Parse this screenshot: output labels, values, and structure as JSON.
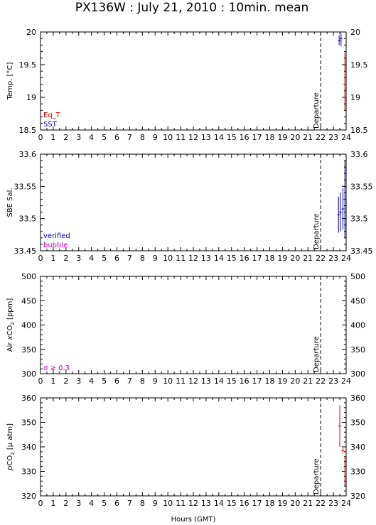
{
  "title": "PX136W : July 21, 2010 : 10min. mean",
  "xlabel": "Hours (GMT)",
  "departure_label": "Departure",
  "chart_data": [
    {
      "type": "scatter",
      "ylabel": "Temp. [°C]",
      "xlim": [
        0,
        24
      ],
      "ylim": [
        18.5,
        20
      ],
      "yticks": [
        18.5,
        19,
        19.5,
        20
      ],
      "ytick_labels": [
        "18.5",
        "19",
        "19.5",
        "20"
      ],
      "xticks": [
        0,
        1,
        2,
        3,
        4,
        5,
        6,
        7,
        8,
        9,
        10,
        11,
        12,
        13,
        14,
        15,
        16,
        17,
        18,
        19,
        20,
        21,
        22,
        23,
        24
      ],
      "departure_x": 22,
      "legend": [
        {
          "label": "Eq_T",
          "color": "#cc0000"
        },
        {
          "label": "SST",
          "color": "#0000aa"
        }
      ],
      "series": [
        {
          "name": "SST",
          "color": "#0000aa",
          "points": [
            {
              "x": 23.45,
              "y": 19.87,
              "lo": 19.8,
              "hi": 19.95
            },
            {
              "x": 23.6,
              "y": 19.9,
              "lo": 19.78,
              "hi": 19.98
            }
          ]
        },
        {
          "name": "Eq_T",
          "color": "#cc0000",
          "points": [
            {
              "x": 23.9,
              "y": 19.2,
              "lo": 18.8,
              "hi": 19.68
            }
          ]
        }
      ]
    },
    {
      "type": "scatter",
      "ylabel": "SBE Sal.",
      "xlim": [
        0,
        24
      ],
      "ylim": [
        33.45,
        33.6
      ],
      "yticks": [
        33.45,
        33.5,
        33.55,
        33.6
      ],
      "ytick_labels": [
        "33.45",
        "33.5",
        "33.55",
        "33.6"
      ],
      "xticks": [
        0,
        1,
        2,
        3,
        4,
        5,
        6,
        7,
        8,
        9,
        10,
        11,
        12,
        13,
        14,
        15,
        16,
        17,
        18,
        19,
        20,
        21,
        22,
        23,
        24
      ],
      "departure_x": 22,
      "legend": [
        {
          "label": "verified",
          "color": "#0000aa"
        },
        {
          "label": "bubble",
          "color": "#cc00cc"
        }
      ],
      "series": [
        {
          "name": "verified",
          "color": "#0000aa",
          "points": [
            {
              "x": 23.4,
              "y": 33.506,
              "lo": 33.478,
              "hi": 33.534
            },
            {
              "x": 23.55,
              "y": 33.51,
              "lo": 33.48,
              "hi": 33.54
            },
            {
              "x": 23.75,
              "y": 33.515,
              "lo": 33.483,
              "hi": 33.547
            },
            {
              "x": 23.9,
              "y": 33.53,
              "lo": 33.47,
              "hi": 33.59
            }
          ]
        }
      ]
    },
    {
      "type": "scatter",
      "ylabel": "Air xCO2 [ppm]",
      "xlim": [
        0,
        24
      ],
      "ylim": [
        300,
        500
      ],
      "yticks": [
        300,
        350,
        400,
        450,
        500
      ],
      "ytick_labels": [
        "300",
        "350",
        "400",
        "450",
        "500"
      ],
      "xticks": [
        0,
        1,
        2,
        3,
        4,
        5,
        6,
        7,
        8,
        9,
        10,
        11,
        12,
        13,
        14,
        15,
        16,
        17,
        18,
        19,
        20,
        21,
        22,
        23,
        24
      ],
      "departure_x": 22,
      "legend": [
        {
          "label": "σ ≥ 0.3",
          "color": "#cc00cc"
        }
      ],
      "series": []
    },
    {
      "type": "scatter",
      "ylabel": "pCO2 [µ atm]",
      "xlim": [
        0,
        24
      ],
      "ylim": [
        320,
        360
      ],
      "yticks": [
        320,
        330,
        340,
        350,
        360
      ],
      "ytick_labels": [
        "320",
        "330",
        "340",
        "350",
        "360"
      ],
      "xticks": [
        0,
        1,
        2,
        3,
        4,
        5,
        6,
        7,
        8,
        9,
        10,
        11,
        12,
        13,
        14,
        15,
        16,
        17,
        18,
        19,
        20,
        21,
        22,
        23,
        24
      ],
      "departure_x": 22,
      "legend": [],
      "series": [
        {
          "name": "",
          "color": "#cc0000",
          "points": [
            {
              "x": 23.5,
              "y": 348.5,
              "lo": 340,
              "hi": 357
            },
            {
              "x": 23.75,
              "y": 338.5,
              "lo": 337.5,
              "hi": 339.5
            },
            {
              "x": 23.9,
              "y": 330,
              "lo": 324,
              "hi": 336
            }
          ]
        }
      ]
    }
  ]
}
